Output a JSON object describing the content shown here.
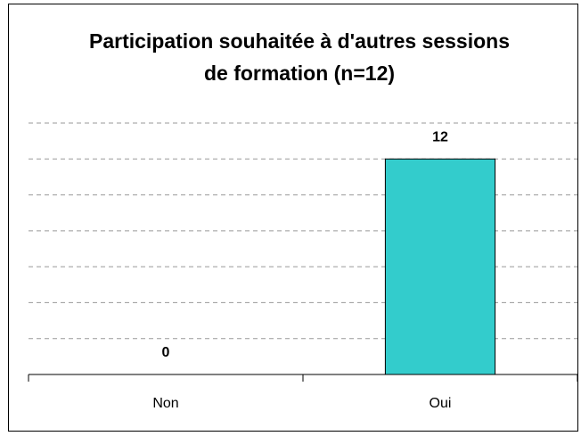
{
  "chart_data": {
    "type": "bar",
    "title": "Participation souhaitée à d'autres sessions de formation (n=12)",
    "categories": [
      "Non",
      "Oui"
    ],
    "values": [
      0,
      12
    ],
    "color": "#33cccc",
    "ylim": [
      0,
      14
    ],
    "yticks": [
      0,
      2,
      4,
      6,
      8,
      10,
      12,
      14
    ],
    "grid": true
  }
}
